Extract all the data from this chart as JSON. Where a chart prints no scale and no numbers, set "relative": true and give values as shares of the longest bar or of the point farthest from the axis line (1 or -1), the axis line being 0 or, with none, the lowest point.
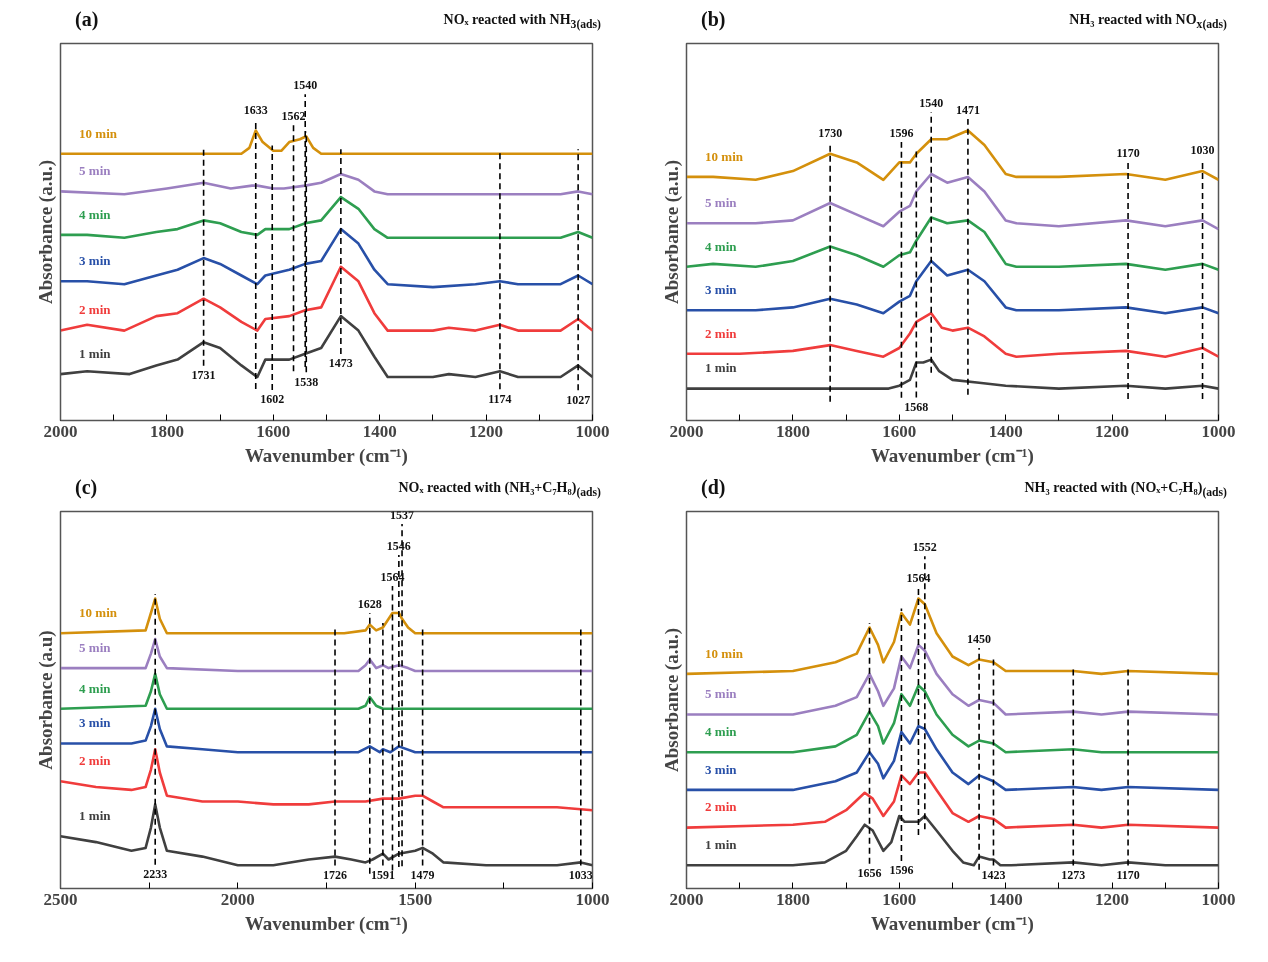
{
  "chart_data": [
    {
      "type": "line",
      "title": "(a)",
      "subtitle": "NOₓ reacted with NH$_{3(ads)}$",
      "xlabel": "Wavenumber (cm⁻¹)",
      "ylabel": "Absorbance (a.u.)",
      "relative": true,
      "tick_labels": "x",
      "xlim": [
        2000,
        1000
      ],
      "xticks": [
        2000,
        {
          "value": 1900,
          "label": null
        },
        1800,
        {
          "value": 1700,
          "label": null
        },
        1600,
        {
          "value": 1500,
          "label": null
        },
        1400,
        {
          "value": 1300,
          "label": null
        },
        1200,
        {
          "value": 1100,
          "label": null
        },
        1000
      ],
      "series": [
        {
          "name": "1 min",
          "color": "#404040",
          "x": [
            2000,
            1950,
            1870,
            1820,
            1780,
            1731,
            1700,
            1660,
            1630,
            1615,
            1570,
            1540,
            1510,
            1473,
            1440,
            1410,
            1385,
            1300,
            1270,
            1220,
            1174,
            1140,
            1060,
            1027,
            1000
          ],
          "values": [
            0.16,
            0.17,
            0.16,
            0.19,
            0.21,
            0.27,
            0.25,
            0.19,
            0.15,
            0.21,
            0.21,
            0.23,
            0.25,
            0.36,
            0.31,
            0.22,
            0.15,
            0.15,
            0.16,
            0.15,
            0.17,
            0.15,
            0.15,
            0.19,
            0.15
          ]
        },
        {
          "name": "2 min",
          "color": "#f03c3c",
          "x": [
            2000,
            1950,
            1880,
            1820,
            1780,
            1731,
            1700,
            1660,
            1630,
            1615,
            1570,
            1540,
            1510,
            1473,
            1440,
            1410,
            1385,
            1300,
            1270,
            1220,
            1174,
            1140,
            1060,
            1027,
            1000
          ],
          "values": [
            0.31,
            0.33,
            0.31,
            0.36,
            0.37,
            0.42,
            0.39,
            0.34,
            0.31,
            0.35,
            0.36,
            0.38,
            0.39,
            0.53,
            0.48,
            0.37,
            0.31,
            0.31,
            0.32,
            0.31,
            0.33,
            0.31,
            0.31,
            0.35,
            0.31
          ]
        },
        {
          "name": "3 min",
          "color": "#2850a8",
          "x": [
            2000,
            1950,
            1880,
            1820,
            1780,
            1731,
            1700,
            1660,
            1630,
            1615,
            1570,
            1540,
            1510,
            1473,
            1440,
            1410,
            1385,
            1300,
            1220,
            1174,
            1140,
            1060,
            1027,
            1000
          ],
          "values": [
            0.48,
            0.48,
            0.47,
            0.5,
            0.52,
            0.56,
            0.54,
            0.5,
            0.47,
            0.5,
            0.52,
            0.54,
            0.55,
            0.66,
            0.61,
            0.52,
            0.47,
            0.46,
            0.47,
            0.48,
            0.47,
            0.47,
            0.5,
            0.47
          ]
        },
        {
          "name": "4 min",
          "color": "#2e9e50",
          "x": [
            2000,
            1950,
            1880,
            1820,
            1780,
            1731,
            1700,
            1660,
            1630,
            1615,
            1570,
            1540,
            1510,
            1473,
            1440,
            1410,
            1385,
            1300,
            1220,
            1174,
            1060,
            1027,
            1000
          ],
          "values": [
            0.64,
            0.64,
            0.63,
            0.65,
            0.66,
            0.69,
            0.68,
            0.65,
            0.64,
            0.66,
            0.66,
            0.68,
            0.69,
            0.77,
            0.73,
            0.66,
            0.63,
            0.63,
            0.63,
            0.63,
            0.63,
            0.65,
            0.63
          ]
        },
        {
          "name": "5 min",
          "color": "#9b7fc0",
          "x": [
            2000,
            1880,
            1800,
            1731,
            1680,
            1640,
            1630,
            1600,
            1580,
            1540,
            1510,
            1473,
            1440,
            1410,
            1385,
            1300,
            1174,
            1060,
            1027,
            1000
          ],
          "values": [
            0.79,
            0.78,
            0.8,
            0.82,
            0.8,
            0.81,
            0.81,
            0.8,
            0.8,
            0.81,
            0.82,
            0.85,
            0.83,
            0.79,
            0.78,
            0.78,
            0.78,
            0.78,
            0.79,
            0.78
          ]
        },
        {
          "name": "10 min",
          "color": "#d4900c",
          "x": [
            2000,
            1700,
            1660,
            1645,
            1633,
            1620,
            1600,
            1585,
            1570,
            1550,
            1538,
            1525,
            1510,
            1400,
            1000
          ],
          "values": [
            0.92,
            0.92,
            0.92,
            0.94,
            1,
            0.96,
            0.93,
            0.93,
            0.96,
            0.97,
            0.98,
            0.94,
            0.92,
            0.92,
            0.92
          ]
        }
      ],
      "ref_lines": [
        {
          "axis": "x",
          "value": 1731,
          "label": "1731"
        },
        {
          "axis": "x",
          "value": 1633,
          "label": "1633"
        },
        {
          "axis": "x",
          "value": 1602,
          "label": "1602"
        },
        {
          "axis": "x",
          "value": 1562,
          "label": "1562"
        },
        {
          "axis": "x",
          "value": 1538,
          "label": "1538"
        },
        {
          "axis": "x",
          "value": 1540,
          "label": "1540"
        },
        {
          "axis": "x",
          "value": 1473,
          "label": "1473"
        },
        {
          "axis": "x",
          "value": 1174,
          "label": "1174"
        },
        {
          "axis": "x",
          "value": 1027,
          "label": "1027"
        }
      ]
    },
    {
      "type": "line",
      "title": "(b)",
      "subtitle": "NH₃ reacted with NO$_{x(ads)}$",
      "xlabel": "Wavenumber (cm⁻¹)",
      "ylabel": "Absorbance (a.u.)",
      "relative": true,
      "tick_labels": "x",
      "xlim": [
        2000,
        1000
      ],
      "xticks": [
        2000,
        {
          "value": 1900,
          "label": null
        },
        1800,
        {
          "value": 1700,
          "label": null
        },
        1600,
        {
          "value": 1500,
          "label": null
        },
        1400,
        {
          "value": 1300,
          "label": null
        },
        1200,
        {
          "value": 1100,
          "label": null
        },
        1000
      ],
      "series": [
        {
          "name": "1 min",
          "color": "#404040",
          "x": [
            2000,
            1620,
            1600,
            1580,
            1568,
            1555,
            1540,
            1525,
            1500,
            1450,
            1400,
            1300,
            1174,
            1100,
            1030,
            1000
          ],
          "values": [
            0.11,
            0.11,
            0.12,
            0.14,
            0.2,
            0.2,
            0.21,
            0.17,
            0.14,
            0.13,
            0.12,
            0.11,
            0.12,
            0.11,
            0.12,
            0.11
          ]
        },
        {
          "name": "2 min",
          "color": "#f03c3c",
          "x": [
            2000,
            1900,
            1800,
            1730,
            1680,
            1630,
            1600,
            1580,
            1568,
            1540,
            1520,
            1500,
            1471,
            1440,
            1400,
            1380,
            1300,
            1174,
            1100,
            1030,
            1000
          ],
          "values": [
            0.23,
            0.23,
            0.24,
            0.26,
            0.24,
            0.22,
            0.25,
            0.3,
            0.34,
            0.37,
            0.32,
            0.31,
            0.32,
            0.29,
            0.23,
            0.22,
            0.23,
            0.24,
            0.22,
            0.25,
            0.22
          ]
        },
        {
          "name": "3 min",
          "color": "#2850a8",
          "x": [
            2000,
            1870,
            1800,
            1730,
            1680,
            1630,
            1600,
            1580,
            1568,
            1540,
            1510,
            1471,
            1440,
            1400,
            1380,
            1300,
            1174,
            1100,
            1030,
            1000
          ],
          "values": [
            0.38,
            0.38,
            0.39,
            0.42,
            0.4,
            0.37,
            0.41,
            0.43,
            0.48,
            0.55,
            0.5,
            0.52,
            0.48,
            0.39,
            0.38,
            0.38,
            0.39,
            0.37,
            0.39,
            0.37
          ]
        },
        {
          "name": "4 min",
          "color": "#2e9e50",
          "x": [
            2000,
            1950,
            1870,
            1800,
            1730,
            1680,
            1630,
            1600,
            1580,
            1568,
            1540,
            1510,
            1471,
            1440,
            1400,
            1380,
            1300,
            1174,
            1100,
            1030,
            1000
          ],
          "values": [
            0.53,
            0.54,
            0.53,
            0.55,
            0.6,
            0.57,
            0.53,
            0.57,
            0.58,
            0.62,
            0.7,
            0.68,
            0.69,
            0.65,
            0.54,
            0.53,
            0.53,
            0.54,
            0.52,
            0.54,
            0.52
          ]
        },
        {
          "name": "5 min",
          "color": "#9b7fc0",
          "x": [
            2000,
            1870,
            1800,
            1730,
            1680,
            1630,
            1600,
            1580,
            1568,
            1540,
            1510,
            1471,
            1440,
            1400,
            1380,
            1300,
            1174,
            1100,
            1030,
            1000
          ],
          "values": [
            0.68,
            0.68,
            0.69,
            0.75,
            0.71,
            0.67,
            0.72,
            0.74,
            0.79,
            0.85,
            0.82,
            0.84,
            0.79,
            0.69,
            0.68,
            0.67,
            0.69,
            0.67,
            0.69,
            0.66
          ]
        },
        {
          "name": "10 min",
          "color": "#d4900c",
          "x": [
            2000,
            1950,
            1870,
            1800,
            1730,
            1680,
            1630,
            1600,
            1580,
            1568,
            1540,
            1510,
            1471,
            1440,
            1400,
            1380,
            1300,
            1174,
            1100,
            1030,
            1000
          ],
          "values": [
            0.84,
            0.84,
            0.83,
            0.86,
            0.92,
            0.89,
            0.83,
            0.89,
            0.89,
            0.92,
            0.97,
            0.97,
            1,
            0.95,
            0.85,
            0.84,
            0.84,
            0.85,
            0.83,
            0.86,
            0.83
          ]
        }
      ],
      "ref_lines": [
        {
          "axis": "x",
          "value": 1730,
          "label": "1730"
        },
        {
          "axis": "x",
          "value": 1596,
          "label": "1596"
        },
        {
          "axis": "x",
          "value": 1568,
          "label": "1568"
        },
        {
          "axis": "x",
          "value": 1540,
          "label": "1540"
        },
        {
          "axis": "x",
          "value": 1471,
          "label": "1471"
        },
        {
          "axis": "x",
          "value": 1170,
          "label": "1170"
        },
        {
          "axis": "x",
          "value": 1030,
          "label": "1030"
        }
      ]
    },
    {
      "type": "line",
      "title": "(c)",
      "subtitle": "NOₓ reacted with (NH₃+C₇H₈)$_{(ads)}$",
      "xlabel": "Wavenumber (cm⁻¹)",
      "ylabel": "Absorbance (a.u)",
      "relative": true,
      "tick_labels": "x",
      "xlim": [
        2500,
        1000
      ],
      "xticks": [
        2500,
        {
          "value": 2250,
          "label": null
        },
        2000,
        {
          "value": 1750,
          "label": null
        },
        1500,
        {
          "value": 1250,
          "label": null
        },
        1000
      ],
      "series": [
        {
          "name": "1 min",
          "color": "#404040",
          "x": [
            2500,
            2400,
            2300,
            2260,
            2245,
            2233,
            2220,
            2200,
            2100,
            2000,
            1900,
            1800,
            1726,
            1680,
            1640,
            1620,
            1591,
            1575,
            1546,
            1500,
            1479,
            1450,
            1420,
            1300,
            1100,
            1033,
            1000
          ],
          "values": [
            0.18,
            0.16,
            0.13,
            0.14,
            0.21,
            0.29,
            0.21,
            0.13,
            0.11,
            0.08,
            0.08,
            0.1,
            0.11,
            0.1,
            0.09,
            0.1,
            0.12,
            0.1,
            0.12,
            0.13,
            0.14,
            0.12,
            0.09,
            0.08,
            0.08,
            0.09,
            0.08
          ]
        },
        {
          "name": "2 min",
          "color": "#f03c3c",
          "x": [
            2500,
            2400,
            2300,
            2260,
            2245,
            2233,
            2220,
            2200,
            2100,
            2000,
            1900,
            1800,
            1726,
            1640,
            1591,
            1546,
            1500,
            1479,
            1450,
            1420,
            1300,
            1100,
            1000
          ],
          "values": [
            0.37,
            0.35,
            0.34,
            0.35,
            0.41,
            0.48,
            0.4,
            0.32,
            0.3,
            0.3,
            0.29,
            0.29,
            0.3,
            0.3,
            0.31,
            0.31,
            0.32,
            0.32,
            0.3,
            0.28,
            0.28,
            0.28,
            0.27
          ]
        },
        {
          "name": "3 min",
          "color": "#2850a8",
          "x": [
            2500,
            2300,
            2260,
            2245,
            2233,
            2220,
            2200,
            2100,
            2000,
            1800,
            1660,
            1628,
            1600,
            1591,
            1570,
            1546,
            1500,
            1400,
            1000
          ],
          "values": [
            0.5,
            0.5,
            0.51,
            0.56,
            0.62,
            0.55,
            0.49,
            0.48,
            0.47,
            0.47,
            0.47,
            0.49,
            0.47,
            0.48,
            0.47,
            0.49,
            0.47,
            0.47,
            0.47
          ]
        },
        {
          "name": "4 min",
          "color": "#2e9e50",
          "x": [
            2500,
            2260,
            2245,
            2233,
            2220,
            2200,
            2000,
            1660,
            1640,
            1628,
            1610,
            1591,
            1575,
            1546,
            1500,
            1000
          ],
          "values": [
            0.62,
            0.63,
            0.68,
            0.74,
            0.67,
            0.62,
            0.62,
            0.62,
            0.63,
            0.66,
            0.63,
            0.62,
            0.62,
            0.62,
            0.62,
            0.62
          ]
        },
        {
          "name": "5 min",
          "color": "#9b7fc0",
          "x": [
            2500,
            2260,
            2245,
            2233,
            2220,
            2200,
            2000,
            1660,
            1640,
            1628,
            1610,
            1591,
            1575,
            1546,
            1520,
            1500,
            1000
          ],
          "values": [
            0.76,
            0.76,
            0.81,
            0.86,
            0.8,
            0.76,
            0.75,
            0.75,
            0.77,
            0.79,
            0.76,
            0.77,
            0.76,
            0.77,
            0.76,
            0.75,
            0.75
          ]
        },
        {
          "name": "10 min",
          "color": "#d4900c",
          "x": [
            2500,
            2260,
            2245,
            2233,
            2220,
            2200,
            1700,
            1640,
            1628,
            1610,
            1591,
            1564,
            1546,
            1537,
            1520,
            1500,
            1000
          ],
          "values": [
            0.88,
            0.89,
            0.95,
            1,
            0.93,
            0.88,
            0.88,
            0.89,
            0.91,
            0.89,
            0.9,
            0.95,
            0.95,
            0.93,
            0.9,
            0.88,
            0.88
          ]
        }
      ],
      "ref_lines": [
        {
          "axis": "x",
          "value": 2233,
          "label": "2233"
        },
        {
          "axis": "x",
          "value": 1726,
          "label": "1726"
        },
        {
          "axis": "x",
          "value": 1628,
          "label": "1628"
        },
        {
          "axis": "x",
          "value": 1591,
          "label": "1591"
        },
        {
          "axis": "x",
          "value": 1564,
          "label": "1564"
        },
        {
          "axis": "x",
          "value": 1546,
          "label": "1546"
        },
        {
          "axis": "x",
          "value": 1537,
          "label": "1537"
        },
        {
          "axis": "x",
          "value": 1479,
          "label": "1479"
        },
        {
          "axis": "x",
          "value": 1033,
          "label": "1033"
        }
      ]
    },
    {
      "type": "line",
      "title": "(d)",
      "subtitle": "NH₃ reacted with (NOₓ+C₇H₈)$_{(ads)}$",
      "xlabel": "Wavenumber (cm⁻¹)",
      "ylabel": "Absorbance (a.u.)",
      "relative": true,
      "tick_labels": "x",
      "xlim": [
        2000,
        1000
      ],
      "xticks": [
        2000,
        {
          "value": 1900,
          "label": null
        },
        1800,
        {
          "value": 1700,
          "label": null
        },
        1600,
        {
          "value": 1500,
          "label": null
        },
        1400,
        {
          "value": 1300,
          "label": null
        },
        1200,
        {
          "value": 1100,
          "label": null
        },
        1000
      ],
      "series": [
        {
          "name": "1 min",
          "color": "#404040",
          "x": [
            2000,
            1800,
            1740,
            1700,
            1680,
            1665,
            1650,
            1630,
            1615,
            1600,
            1590,
            1564,
            1552,
            1530,
            1500,
            1480,
            1460,
            1450,
            1430,
            1423,
            1410,
            1390,
            1273,
            1220,
            1170,
            1100,
            1000
          ],
          "values": [
            0.08,
            0.08,
            0.09,
            0.13,
            0.18,
            0.22,
            0.2,
            0.13,
            0.16,
            0.25,
            0.23,
            0.23,
            0.25,
            0.2,
            0.13,
            0.09,
            0.08,
            0.11,
            0.1,
            0.1,
            0.08,
            0.08,
            0.09,
            0.08,
            0.09,
            0.08,
            0.08
          ]
        },
        {
          "name": "2 min",
          "color": "#f03c3c",
          "x": [
            2000,
            1800,
            1740,
            1700,
            1665,
            1650,
            1630,
            1610,
            1596,
            1580,
            1564,
            1552,
            1530,
            1500,
            1470,
            1450,
            1423,
            1400,
            1273,
            1220,
            1170,
            1000
          ],
          "values": [
            0.21,
            0.22,
            0.23,
            0.27,
            0.33,
            0.31,
            0.25,
            0.3,
            0.39,
            0.36,
            0.4,
            0.4,
            0.34,
            0.26,
            0.23,
            0.25,
            0.24,
            0.21,
            0.22,
            0.21,
            0.22,
            0.21
          ]
        },
        {
          "name": "3 min",
          "color": "#2850a8",
          "x": [
            2000,
            1800,
            1720,
            1680,
            1656,
            1640,
            1630,
            1610,
            1596,
            1580,
            1564,
            1552,
            1530,
            1500,
            1470,
            1450,
            1423,
            1400,
            1273,
            1220,
            1170,
            1000
          ],
          "values": [
            0.34,
            0.34,
            0.37,
            0.4,
            0.47,
            0.43,
            0.38,
            0.44,
            0.54,
            0.5,
            0.56,
            0.55,
            0.48,
            0.4,
            0.36,
            0.39,
            0.37,
            0.34,
            0.35,
            0.34,
            0.35,
            0.34
          ]
        },
        {
          "name": "4 min",
          "color": "#2e9e50",
          "x": [
            2000,
            1800,
            1720,
            1680,
            1656,
            1640,
            1630,
            1610,
            1596,
            1580,
            1564,
            1552,
            1530,
            1500,
            1470,
            1450,
            1423,
            1400,
            1273,
            1220,
            1170,
            1000
          ],
          "values": [
            0.47,
            0.47,
            0.49,
            0.53,
            0.61,
            0.56,
            0.5,
            0.57,
            0.67,
            0.63,
            0.7,
            0.68,
            0.6,
            0.53,
            0.49,
            0.51,
            0.5,
            0.47,
            0.48,
            0.47,
            0.47,
            0.47
          ]
        },
        {
          "name": "5 min",
          "color": "#9b7fc0",
          "x": [
            2000,
            1800,
            1720,
            1680,
            1656,
            1640,
            1630,
            1610,
            1596,
            1580,
            1564,
            1552,
            1530,
            1500,
            1470,
            1450,
            1423,
            1400,
            1273,
            1220,
            1170,
            1000
          ],
          "values": [
            0.6,
            0.6,
            0.63,
            0.66,
            0.74,
            0.68,
            0.63,
            0.69,
            0.8,
            0.76,
            0.84,
            0.82,
            0.74,
            0.67,
            0.63,
            0.65,
            0.64,
            0.6,
            0.61,
            0.6,
            0.61,
            0.6
          ]
        },
        {
          "name": "10 min",
          "color": "#d4900c",
          "x": [
            2000,
            1800,
            1720,
            1680,
            1656,
            1640,
            1630,
            1610,
            1596,
            1580,
            1564,
            1552,
            1530,
            1500,
            1470,
            1450,
            1423,
            1400,
            1273,
            1220,
            1170,
            1000
          ],
          "values": [
            0.74,
            0.75,
            0.78,
            0.81,
            0.9,
            0.84,
            0.78,
            0.85,
            0.95,
            0.91,
            1,
            0.98,
            0.88,
            0.8,
            0.77,
            0.79,
            0.78,
            0.75,
            0.75,
            0.74,
            0.75,
            0.74
          ]
        }
      ],
      "ref_lines": [
        {
          "axis": "x",
          "value": 1656,
          "label": "1656"
        },
        {
          "axis": "x",
          "value": 1596,
          "label": "1596"
        },
        {
          "axis": "x",
          "value": 1564,
          "label": "1564"
        },
        {
          "axis": "x",
          "value": 1552,
          "label": "1552"
        },
        {
          "axis": "x",
          "value": 1450,
          "label": "1450"
        },
        {
          "axis": "x",
          "value": 1423,
          "label": "1423"
        },
        {
          "axis": "x",
          "value": 1273,
          "label": "1273"
        },
        {
          "axis": "x",
          "value": 1170,
          "label": "1170"
        }
      ]
    }
  ]
}
